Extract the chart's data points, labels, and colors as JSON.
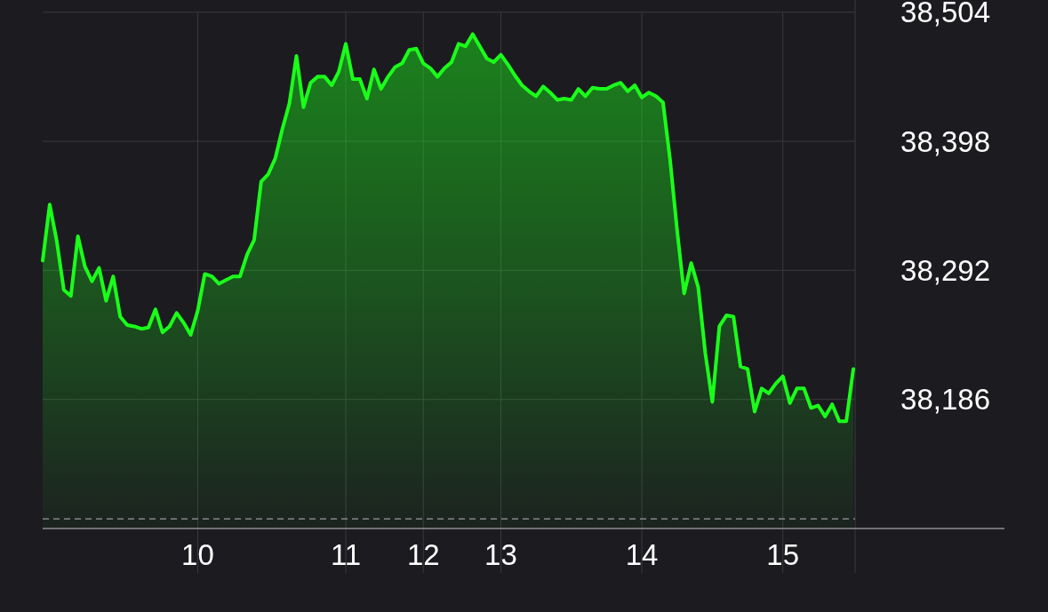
{
  "chart_data": {
    "type": "area",
    "grid": true,
    "ylim": [
      38080,
      38514
    ],
    "categories": [
      null,
      null,
      null,
      null,
      null,
      null,
      null,
      null,
      null,
      null,
      null,
      null,
      null,
      null,
      null,
      null,
      null,
      null,
      null,
      null,
      null,
      null,
      "10",
      null,
      null,
      null,
      null,
      null,
      null,
      null,
      null,
      null,
      null,
      null,
      null,
      null,
      null,
      null,
      null,
      null,
      null,
      null,
      null,
      "11",
      null,
      null,
      null,
      null,
      null,
      null,
      null,
      null,
      null,
      null,
      "12",
      null,
      null,
      null,
      null,
      null,
      null,
      null,
      null,
      null,
      null,
      "13",
      null,
      null,
      null,
      null,
      null,
      null,
      null,
      null,
      null,
      null,
      null,
      null,
      null,
      null,
      null,
      null,
      null,
      null,
      null,
      "14",
      null,
      null,
      null,
      null,
      null,
      null,
      null,
      null,
      null,
      null,
      null,
      null,
      null,
      null,
      null,
      null,
      null,
      null,
      null,
      "15",
      null,
      null,
      null,
      null,
      null,
      null,
      null,
      null,
      null,
      null
    ],
    "yticks": [
      {
        "value": 38504,
        "label": "38,504"
      },
      {
        "value": 38398,
        "label": "38,398"
      },
      {
        "value": 38292,
        "label": "38,292"
      },
      {
        "value": 38186,
        "label": "38,186"
      }
    ],
    "ref_lines": [
      {
        "axis": "y",
        "value": 38088,
        "color": "#9a9aa0",
        "line_style": "dashed"
      }
    ],
    "series": [
      {
        "color": "#1aff1a",
        "values": [
          38300,
          38346,
          38316,
          38276,
          38271,
          38320,
          38295,
          38283,
          38294,
          38267,
          38287,
          38254,
          38247,
          38246,
          38244,
          38245,
          38260,
          38241,
          38246,
          38257,
          38249,
          38239,
          38259,
          38289,
          38287,
          38281,
          38284,
          38287,
          38287,
          38305,
          38317,
          38365,
          38371,
          38384,
          38408,
          38429,
          38468,
          38426,
          38446,
          38451,
          38451,
          38444,
          38455,
          38478,
          38449,
          38449,
          38433,
          38457,
          38441,
          38451,
          38459,
          38462,
          38473,
          38474,
          38462,
          38458,
          38451,
          38458,
          38463,
          38478,
          38476,
          38486,
          38476,
          38466,
          38463,
          38469,
          38461,
          38452,
          38444,
          38439,
          38435,
          38443,
          38438,
          38432,
          38433,
          38432,
          38441,
          38435,
          38442,
          38441,
          38441,
          38444,
          38446,
          38439,
          38444,
          38434,
          38438,
          38435,
          38430,
          38383,
          38325,
          38273,
          38298,
          38278,
          38224,
          38184,
          38246,
          38255,
          38254,
          38213,
          38211,
          38176,
          38195,
          38191,
          38199,
          38205,
          38183,
          38195,
          38195,
          38179,
          38181,
          38172,
          38182,
          38168,
          38168,
          38211
        ]
      }
    ]
  }
}
